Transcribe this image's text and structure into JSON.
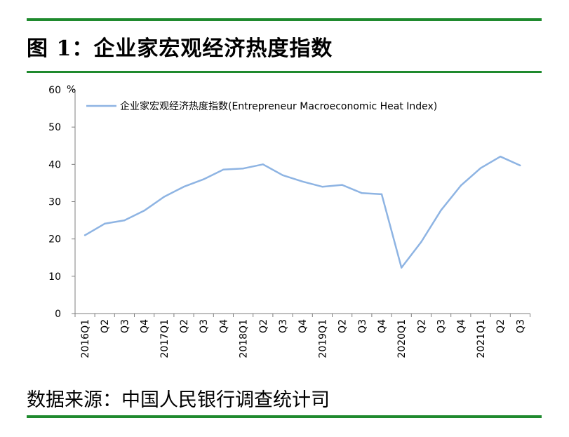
{
  "figure": {
    "title": "图 1：企业家宏观经济热度指数",
    "source": "数据来源：中国人民银行调查统计司"
  },
  "chart_data": {
    "type": "line",
    "ylabel": "%",
    "ylim": [
      0,
      60
    ],
    "yticks": [
      0,
      10,
      20,
      30,
      40,
      50,
      60
    ],
    "grid": false,
    "legend_position": "top",
    "categories": [
      "2016Q1",
      "Q2",
      "Q3",
      "Q4",
      "2017Q1",
      "Q2",
      "Q3",
      "Q4",
      "2018Q1",
      "Q2",
      "Q3",
      "Q4",
      "2019Q1",
      "Q2",
      "Q3",
      "Q4",
      "2020Q1",
      "Q2",
      "Q3",
      "Q4",
      "2021Q1",
      "Q2",
      "Q3"
    ],
    "series": [
      {
        "name": "企业家宏观经济热度指数(Entrepreneur  Macroeconomic Heat Index)",
        "color": "#8eb4e3",
        "values": [
          21.0,
          24.1,
          25.0,
          27.6,
          31.3,
          34.0,
          36.0,
          38.6,
          38.9,
          40.0,
          37.1,
          35.4,
          34.0,
          34.5,
          32.3,
          32.0,
          12.3,
          19.2,
          27.7,
          34.3,
          39.0,
          42.1,
          39.7
        ]
      }
    ]
  }
}
